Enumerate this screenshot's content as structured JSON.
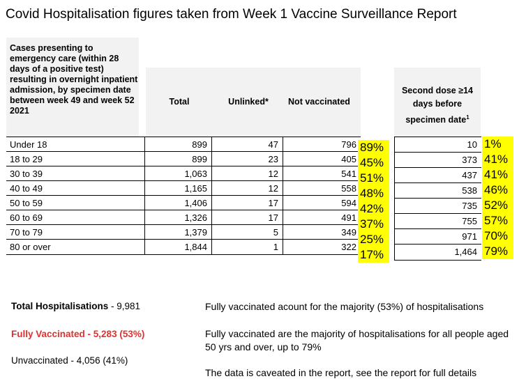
{
  "title": "Covid Hospitalisation figures taken from Week 1 Vaccine Surveillance Report",
  "table": {
    "header_desc": "Cases presenting to emergency care (within 28 days of a positive test) resulting in overnight inpatient admission, by specimen date between week 49 and week 52 2021",
    "col_total": "Total",
    "col_unlinked": "Unlinked*",
    "col_not_vacc": "Not vaccinated",
    "col_second_dose": "Second dose ≥14 days before specimen date",
    "col_second_dose_sup": "1",
    "rows": [
      {
        "age": "Under 18",
        "total": "899",
        "unlinked": "47",
        "not_vacc": "796",
        "nv_pct": "89%",
        "second": "10",
        "second_pct": "1%"
      },
      {
        "age": "18 to 29",
        "total": "899",
        "unlinked": "23",
        "not_vacc": "405",
        "nv_pct": "45%",
        "second": "373",
        "second_pct": "41%"
      },
      {
        "age": "30 to 39",
        "total": "1,063",
        "unlinked": "12",
        "not_vacc": "541",
        "nv_pct": "51%",
        "second": "437",
        "second_pct": "41%"
      },
      {
        "age": "40 to 49",
        "total": "1,165",
        "unlinked": "12",
        "not_vacc": "558",
        "nv_pct": "48%",
        "second": "538",
        "second_pct": "46%"
      },
      {
        "age": "50 to 59",
        "total": "1,406",
        "unlinked": "17",
        "not_vacc": "594",
        "nv_pct": "42%",
        "second": "735",
        "second_pct": "52%"
      },
      {
        "age": "60 to 69",
        "total": "1,326",
        "unlinked": "17",
        "not_vacc": "491",
        "nv_pct": "37%",
        "second": "755",
        "second_pct": "57%"
      },
      {
        "age": "70 to 79",
        "total": "1,379",
        "unlinked": "5",
        "not_vacc": "349",
        "nv_pct": "25%",
        "second": "971",
        "second_pct": "70%"
      },
      {
        "age": "80 or over",
        "total": "1,844",
        "unlinked": "1",
        "not_vacc": "322",
        "nv_pct": "17%",
        "second": "1,464",
        "second_pct": "79%"
      }
    ]
  },
  "summary": {
    "total_label": "Total Hospitalisations",
    "total_value": " - 9,981",
    "fully_vacc": "Fully Vaccinated - 5,283  (53%)",
    "unvacc": "Unvaccinated - 4,056  (41%)",
    "accent": "#e03030"
  },
  "notes": {
    "n1": "Fully vaccinated acount for the majority (53%) of hospitalisations",
    "n2": "Fully vaccinated are the majority of hospitalisations for all people aged 50 yrs and over, up to 79%",
    "n3": "The data is caveated in the report, see the report for full details"
  }
}
